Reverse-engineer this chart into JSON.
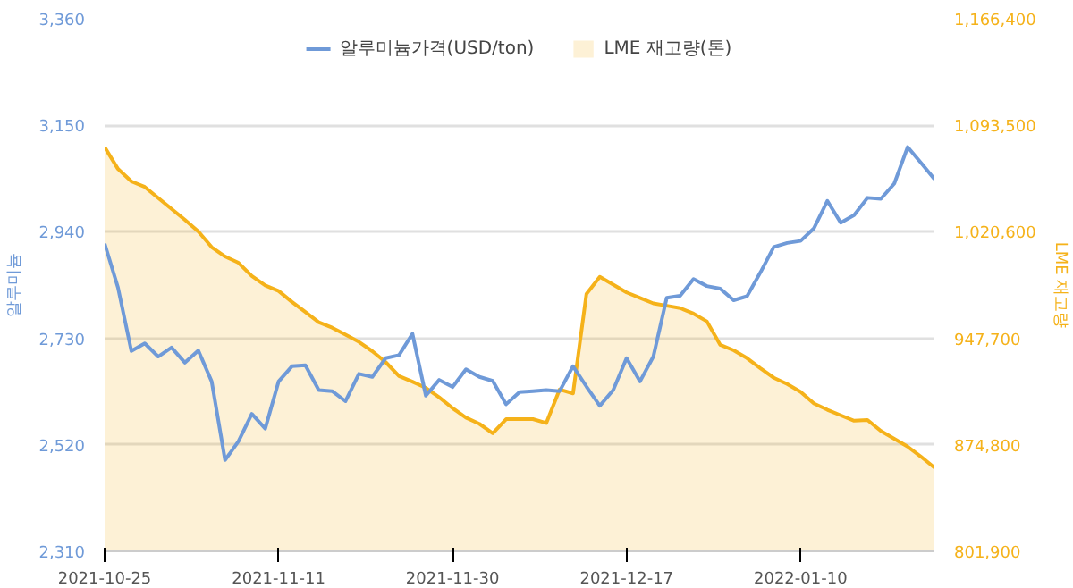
{
  "chart_data": {
    "type": "line",
    "categories": [
      "2021-10-25",
      null,
      null,
      null,
      null,
      null,
      null,
      null,
      null,
      null,
      null,
      null,
      null,
      "2021-11-11",
      null,
      null,
      null,
      null,
      null,
      null,
      null,
      null,
      null,
      null,
      null,
      null,
      "2021-11-30",
      null,
      null,
      null,
      null,
      null,
      null,
      null,
      null,
      null,
      null,
      null,
      null,
      "2021-12-17",
      null,
      null,
      null,
      null,
      null,
      null,
      null,
      null,
      null,
      null,
      null,
      null,
      "2022-01-10",
      null,
      null,
      null,
      null,
      null,
      null,
      null,
      null,
      null,
      null
    ],
    "series": [
      {
        "name": "알루미늄가격(USD/ton)",
        "color": "#6f9ad8",
        "values": [
          2917,
          2830,
          2705,
          2720,
          2694,
          2712,
          2682,
          2706,
          2645,
          2490,
          2527,
          2581,
          2552,
          2645,
          2675,
          2677,
          2628,
          2626,
          2606,
          2660,
          2654,
          2691,
          2697,
          2739,
          2617,
          2648,
          2634,
          2669,
          2654,
          2646,
          2600,
          2624,
          2626,
          2628,
          2626,
          2675,
          2635,
          2597,
          2628,
          2691,
          2645,
          2694,
          2810,
          2814,
          2847,
          2833,
          2828,
          2805,
          2813,
          2860,
          2910,
          2918,
          2922,
          2947,
          3001,
          2958,
          2973,
          3007,
          3005,
          3035,
          3107,
          3076,
          3044
        ]
      },
      {
        "name": "LME 재고량(톤)",
        "type": "area",
        "axis": "y2",
        "color": "#f5b21a",
        "values": [
          1078600,
          1063600,
          1055100,
          1051300,
          1043800,
          1036300,
          1028800,
          1020800,
          1010100,
          1003700,
          999400,
          990300,
          983900,
          980100,
          972600,
          965700,
          958700,
          955000,
          950200,
          945300,
          938900,
          931400,
          921800,
          918000,
          913800,
          907300,
          899900,
          893400,
          889200,
          882700,
          892400,
          892400,
          892400,
          889700,
          912700,
          910000,
          978000,
          989800,
          984400,
          979100,
          975300,
          971600,
          970000,
          968400,
          964600,
          959300,
          943200,
          939500,
          934100,
          927200,
          920700,
          916400,
          911100,
          903100,
          898800,
          895000,
          891300,
          891800,
          884300,
          879000,
          873600,
          866700,
          859200
        ]
      }
    ],
    "ylabel": "알루미늄",
    "y2label": "LME 재고량",
    "ylim": [
      2310,
      3360
    ],
    "yticks": [
      {
        "value": 2310,
        "label": "2,310"
      },
      {
        "value": 2520,
        "label": "2,520"
      },
      {
        "value": 2730,
        "label": "2,730"
      },
      {
        "value": 2940,
        "label": "2,940"
      },
      {
        "value": 3150,
        "label": "3,150"
      },
      {
        "value": 3360,
        "label": "3,360"
      }
    ],
    "y2lim": [
      801900,
      1166400
    ],
    "y2ticks": [
      {
        "value": 801900,
        "label": "801,900"
      },
      {
        "value": 874800,
        "label": "874,800"
      },
      {
        "value": 947700,
        "label": "947,700"
      },
      {
        "value": 1020600,
        "label": "1,020,600"
      },
      {
        "value": 1093500,
        "label": "1,093,500"
      },
      {
        "value": 1166400,
        "label": "1,166,400"
      }
    ],
    "grid": "y",
    "legend": "top",
    "marker": "none",
    "line_style": "solid"
  }
}
